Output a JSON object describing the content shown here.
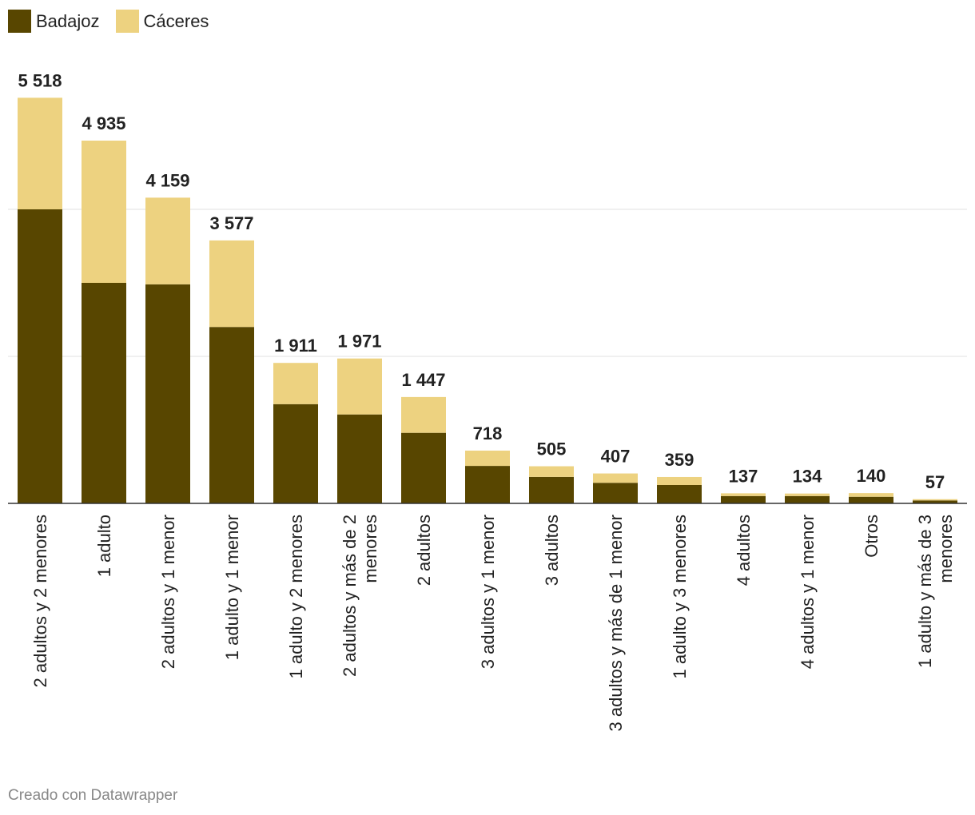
{
  "legend": [
    {
      "label": "Badajoz",
      "color": "#584600"
    },
    {
      "label": "Cáceres",
      "color": "#edd280"
    }
  ],
  "footer": {
    "credit": "Creado con Datawrapper"
  },
  "chart_data": {
    "type": "bar",
    "stacked": true,
    "categories": [
      "2 adultos y 2 menores",
      "1 adulto",
      "2 adultos y 1 menor",
      "1 adulto y 1 menor",
      "1 adulto y 2 menores",
      "2 adultos y más de 2 menores",
      "2 adultos",
      "3 adultos y 1 menor",
      "3 adultos",
      "3 adultos y más de 1 menor",
      "1 adulto y 3 menores",
      "4 adultos",
      "4 adultos y 1 menor",
      "Otros",
      "1 adulto y más de 3 menores"
    ],
    "category_lines": [
      [
        "2 adultos y 2 menores"
      ],
      [
        "1 adulto"
      ],
      [
        "2 adultos y 1 menor"
      ],
      [
        "1 adulto y 1 menor"
      ],
      [
        "1 adulto y 2 menores"
      ],
      [
        "2 adultos y más de 2",
        "menores"
      ],
      [
        "2 adultos"
      ],
      [
        "3 adultos y 1 menor"
      ],
      [
        "3 adultos"
      ],
      [
        "3 adultos y más de 1 menor"
      ],
      [
        "1 adulto y 3 menores"
      ],
      [
        "4 adultos"
      ],
      [
        "4 adultos y 1 menor"
      ],
      [
        "Otros"
      ],
      [
        "1 adulto y más de 3",
        "menores"
      ]
    ],
    "series": [
      {
        "name": "Badajoz",
        "color": "#584600",
        "values": [
          4000,
          3000,
          2980,
          2400,
          1350,
          1210,
          960,
          510,
          360,
          280,
          250,
          100,
          100,
          90,
          40
        ]
      },
      {
        "name": "Cáceres",
        "color": "#edd280",
        "values": [
          1518,
          1935,
          1179,
          1177,
          561,
          761,
          487,
          208,
          145,
          127,
          109,
          37,
          34,
          50,
          17
        ]
      }
    ],
    "totals": [
      "5 518",
      "4 935",
      "4 159",
      "3 577",
      "1 911",
      "1 971",
      "1 447",
      "718",
      "505",
      "407",
      "359",
      "137",
      "134",
      "140",
      "57"
    ],
    "ylim": [
      0,
      6000
    ],
    "gridlines": [
      2000,
      4000
    ],
    "title": "",
    "xlabel": "",
    "ylabel": ""
  }
}
